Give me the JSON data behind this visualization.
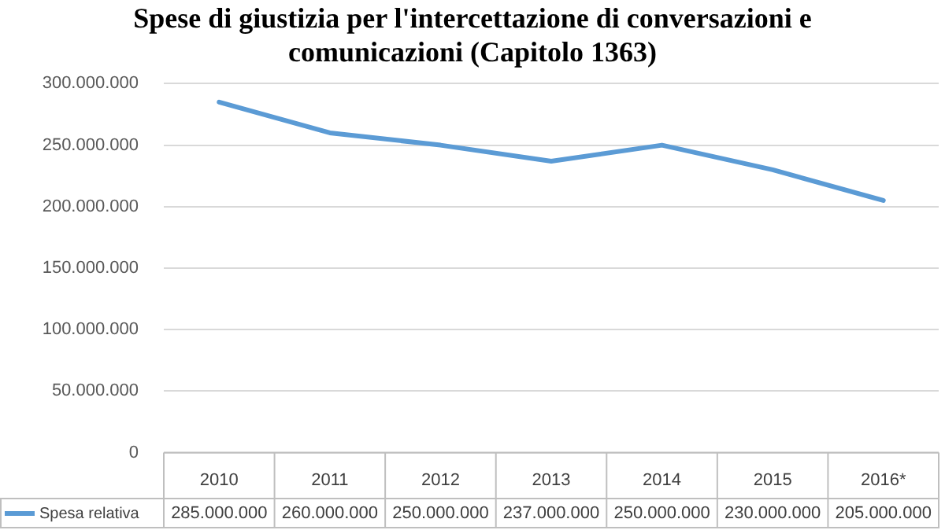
{
  "chart_data": {
    "type": "line",
    "title": "Spese di giustizia per l'intercettazione di conversazioni e comunicazioni (Capitolo 1363)",
    "categories": [
      "2010",
      "2011",
      "2012",
      "2013",
      "2014",
      "2015",
      "2016*"
    ],
    "series": [
      {
        "name": "Spesa relativa",
        "color": "#5b9bd5",
        "values": [
          285000000,
          260000000,
          250000000,
          237000000,
          250000000,
          230000000,
          205000000
        ],
        "value_labels": [
          "285.000.000",
          "260.000.000",
          "250.000.000",
          "237.000.000",
          "250.000.000",
          "230.000.000",
          "205.000.000"
        ]
      }
    ],
    "ylim": [
      0,
      300000000
    ],
    "yticks": [
      0,
      {
        "value": 50000000,
        "label": "50.000.000"
      },
      {
        "value": 100000000,
        "label": "100.000.000"
      },
      {
        "value": 150000000,
        "label": "150.000.000"
      },
      {
        "value": 200000000,
        "label": "200.000.000"
      },
      {
        "value": 250000000,
        "label": "250.000.000"
      },
      {
        "value": 300000000,
        "label": "300.000.000"
      }
    ],
    "grid": "y",
    "legend": "bottom",
    "marker": "none",
    "line_style": "solid"
  }
}
